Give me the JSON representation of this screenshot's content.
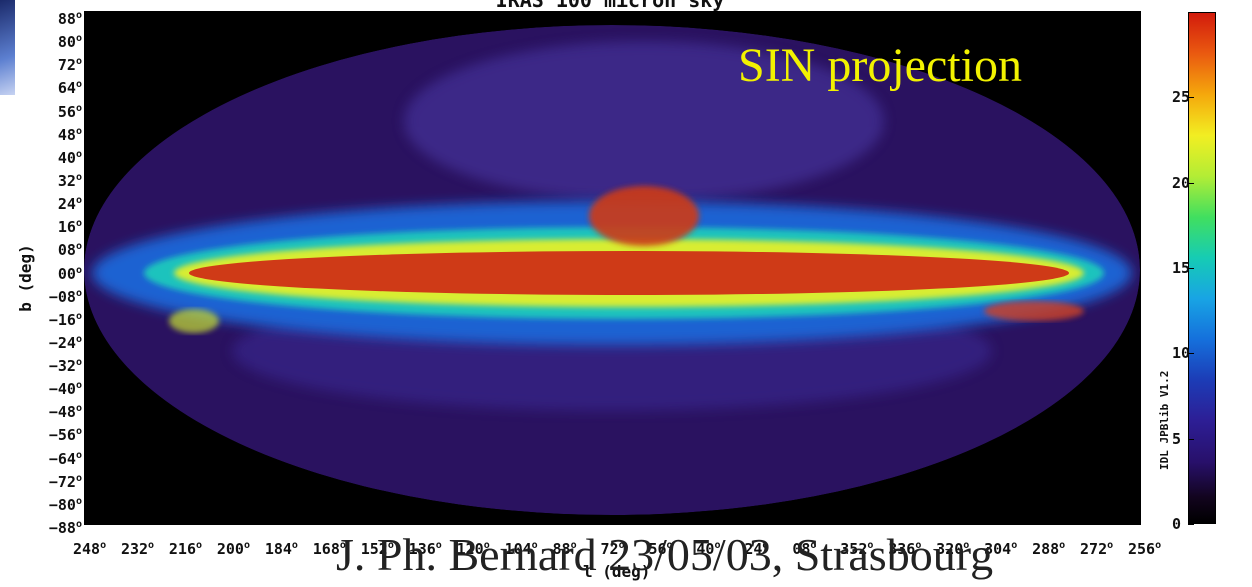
{
  "chart_data": {
    "type": "heatmap",
    "title": "IRAS 100 micron sky",
    "projection_label": "SIN projection",
    "xlabel": "l (deg)",
    "ylabel": "b (deg)",
    "x_ticks": [
      "248",
      "232",
      "216",
      "200",
      "184",
      "168",
      "152",
      "136",
      "120",
      "104",
      "88",
      "72",
      "56",
      "40",
      "24",
      "08",
      "352",
      "336",
      "320",
      "304",
      "288",
      "272",
      "256"
    ],
    "y_ticks": [
      "88",
      "80",
      "72",
      "64",
      "56",
      "48",
      "40",
      "32",
      "24",
      "16",
      "08",
      "00",
      "-08",
      "-16",
      "-24",
      "-32",
      "-40",
      "-48",
      "-56",
      "-64",
      "-72",
      "-80",
      "-88"
    ],
    "ylim": [
      -88,
      88
    ],
    "colorbar": {
      "ticks": [
        0,
        5,
        10,
        15,
        20,
        25
      ],
      "range": [
        0,
        30
      ],
      "colors": [
        "#000000",
        "#2d1e95",
        "#1570dc",
        "#16ccb4",
        "#f2ee22",
        "#f5a80c",
        "#d21b0c"
      ]
    },
    "grid": false
  },
  "version_label": "IDL JPBlib V1.2",
  "credit": "J. Ph. Bernard 23/05/03, Strasbourg"
}
